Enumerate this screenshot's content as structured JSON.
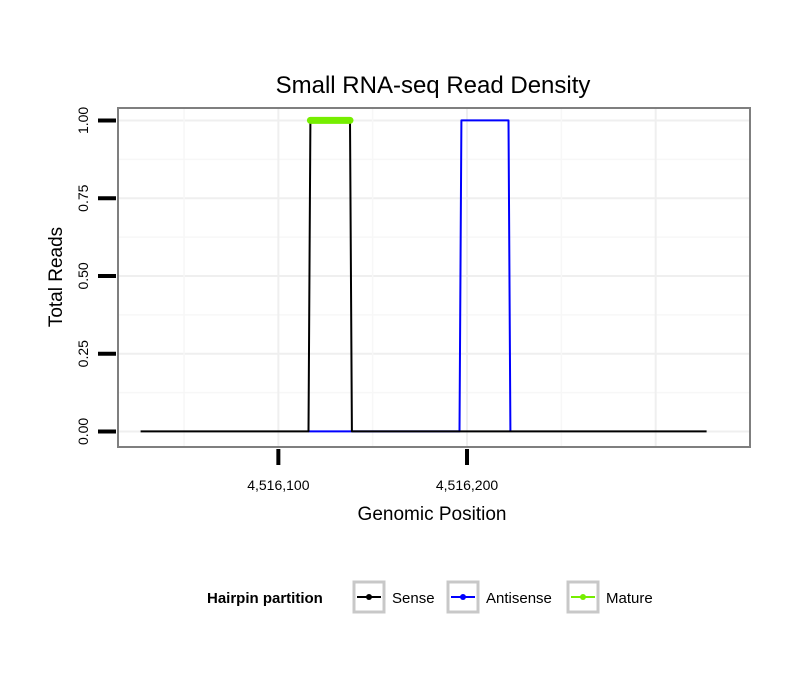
{
  "chart_data": {
    "type": "line",
    "title": "Small RNA-seq Read Density",
    "xlabel": "Genomic Position",
    "ylabel": "Total Reads",
    "xlim": [
      4516015,
      4516350
    ],
    "ylim": [
      -0.05,
      1.04
    ],
    "x_ticks": [
      4516100,
      4516200
    ],
    "x_tick_labels": [
      "4,516,100",
      "4,516,200"
    ],
    "y_ticks": [
      0,
      0.25,
      0.5,
      0.75,
      1
    ],
    "y_tick_labels": [
      "0.00",
      "0.25",
      "0.50",
      "0.75",
      "1.00"
    ],
    "grid": true,
    "legend": {
      "title": "Hairpin partition",
      "position": "bottom",
      "entries": [
        "Sense",
        "Antisense",
        "Mature"
      ]
    },
    "series": [
      {
        "name": "Sense",
        "color": "#000000",
        "points": [
          [
            4516027,
            0
          ],
          [
            4516116,
            0
          ],
          [
            4516117,
            1
          ],
          [
            4516138,
            1
          ],
          [
            4516139,
            0
          ],
          [
            4516327,
            0
          ]
        ]
      },
      {
        "name": "Antisense",
        "color": "#0000ff",
        "points": [
          [
            4516116,
            0
          ],
          [
            4516138,
            0
          ],
          [
            4516196,
            0
          ],
          [
            4516197,
            1
          ],
          [
            4516222,
            1
          ],
          [
            4516223,
            0
          ]
        ]
      },
      {
        "name": "Mature",
        "color": "#76ee00",
        "points": [
          [
            4516117,
            1
          ],
          [
            4516138,
            1
          ]
        ]
      }
    ]
  }
}
